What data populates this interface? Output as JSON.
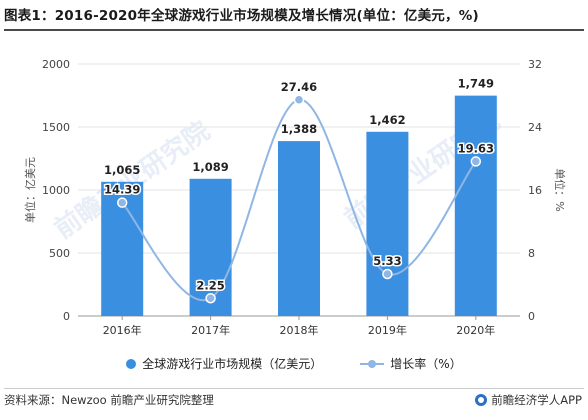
{
  "title": "图表1：2016-2020年全球游戏行业市场规模及增长情况(单位：亿美元，%)",
  "footer": {
    "source": "资料来源：Newzoo 前瞻产业研究院整理",
    "brand": "前瞻经济学人APP"
  },
  "watermark": "前瞻产业研究院",
  "colors": {
    "bar": "#3b8fe0",
    "line": "#8fb6e4",
    "point": "#8fb6e4"
  },
  "legend": {
    "bar_label": "全球游戏行业市场规模（亿美元）",
    "line_label": "增长率（%）"
  },
  "chart_data": {
    "type": "bar",
    "categories": [
      "2016年",
      "2017年",
      "2018年",
      "2019年",
      "2020年"
    ],
    "series": [
      {
        "name": "全球游戏行业市场规模（亿美元）",
        "type": "bar",
        "axis": "left",
        "values": [
          1065,
          1089,
          1388,
          1462,
          1749
        ]
      },
      {
        "name": "增长率（%）",
        "type": "line",
        "axis": "right",
        "values": [
          14.39,
          2.25,
          27.46,
          5.33,
          19.63
        ]
      }
    ],
    "ylabel_left": "单位：亿美元",
    "ylabel_right": "单位：%",
    "ylim_left": [
      0,
      2000
    ],
    "ylim_right": [
      0,
      32
    ],
    "yticks_left": [
      "0",
      "500",
      "1000",
      "1500",
      "2000"
    ],
    "yticks_right": [
      "0",
      "8",
      "16",
      "24",
      "32"
    ],
    "grid": true,
    "legend_position": "bottom"
  }
}
